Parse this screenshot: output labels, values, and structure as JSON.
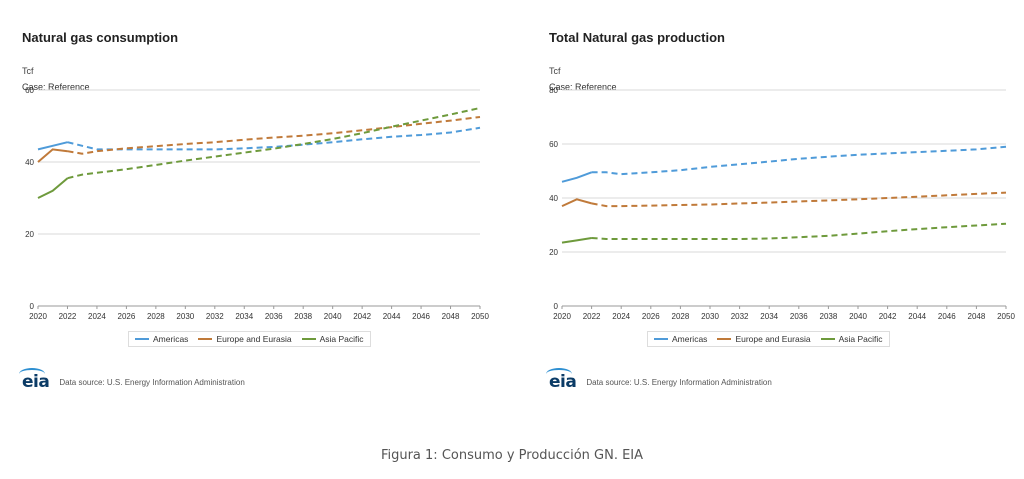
{
  "chart_data": [
    {
      "type": "line",
      "title": "Natural gas consumption",
      "unit_label": "Tcf",
      "case_label": "Case: Reference",
      "x_ticks": [
        "2020",
        "2022",
        "2024",
        "2026",
        "2028",
        "2030",
        "2032",
        "2034",
        "2036",
        "2038",
        "2040",
        "2042",
        "2044",
        "2046",
        "2048",
        "2050"
      ],
      "y_ticks": [
        "0",
        "20",
        "40",
        "60"
      ],
      "ylim": [
        0,
        60
      ],
      "xlim": [
        2020,
        2050
      ],
      "historical_until": 2022,
      "grid": true,
      "legend_position": "bottom",
      "series": [
        {
          "name": "Americas",
          "color": "#4f9bd9",
          "x": [
            2020,
            2021,
            2022,
            2023,
            2024,
            2026,
            2028,
            2030,
            2032,
            2034,
            2036,
            2038,
            2040,
            2042,
            2044,
            2046,
            2048,
            2050
          ],
          "y": [
            43.5,
            44.5,
            45.5,
            44.5,
            43.5,
            43.5,
            43.5,
            43.5,
            43.5,
            43.8,
            44.2,
            44.8,
            45.5,
            46.3,
            47,
            47.5,
            48.2,
            49.5
          ]
        },
        {
          "name": "Europe and Eurasia",
          "color": "#c07a3a",
          "x": [
            2020,
            2021,
            2022,
            2023,
            2024,
            2026,
            2028,
            2030,
            2032,
            2034,
            2036,
            2038,
            2040,
            2042,
            2044,
            2046,
            2048,
            2050
          ],
          "y": [
            40,
            43.5,
            43,
            42.3,
            43,
            43.8,
            44.4,
            45,
            45.5,
            46.2,
            46.8,
            47.3,
            48,
            48.8,
            49.7,
            50.6,
            51.5,
            52.5
          ]
        },
        {
          "name": "Asia Pacific",
          "color": "#6e9a3c",
          "x": [
            2020,
            2021,
            2022,
            2023,
            2024,
            2026,
            2028,
            2030,
            2032,
            2034,
            2036,
            2038,
            2040,
            2042,
            2044,
            2046,
            2048,
            2050
          ],
          "y": [
            30,
            32,
            35.5,
            36.5,
            37,
            38,
            39.2,
            40.4,
            41.5,
            42.6,
            43.7,
            45,
            46.4,
            48,
            49.8,
            51.5,
            53.2,
            55
          ]
        }
      ]
    },
    {
      "type": "line",
      "title": "Total Natural gas production",
      "unit_label": "Tcf",
      "case_label": "Case: Reference",
      "x_ticks": [
        "2020",
        "2022",
        "2024",
        "2026",
        "2028",
        "2030",
        "2032",
        "2034",
        "2036",
        "2038",
        "2040",
        "2042",
        "2044",
        "2046",
        "2048",
        "2050"
      ],
      "y_ticks": [
        "0",
        "20",
        "40",
        "60",
        "80"
      ],
      "ylim": [
        0,
        80
      ],
      "xlim": [
        2020,
        2050
      ],
      "historical_until": 2022,
      "grid": true,
      "legend_position": "bottom",
      "series": [
        {
          "name": "Americas",
          "color": "#4f9bd9",
          "x": [
            2020,
            2021,
            2022,
            2023,
            2024,
            2026,
            2028,
            2030,
            2032,
            2034,
            2036,
            2038,
            2040,
            2042,
            2044,
            2046,
            2048,
            2050
          ],
          "y": [
            46,
            47.5,
            49.5,
            49.5,
            48.8,
            49.5,
            50.3,
            51.5,
            52.5,
            53.5,
            54.5,
            55.3,
            56,
            56.5,
            57,
            57.5,
            58,
            59
          ]
        },
        {
          "name": "Europe and Eurasia",
          "color": "#c07a3a",
          "x": [
            2020,
            2021,
            2022,
            2023,
            2024,
            2026,
            2028,
            2030,
            2032,
            2034,
            2036,
            2038,
            2040,
            2042,
            2044,
            2046,
            2048,
            2050
          ],
          "y": [
            37,
            39.5,
            38,
            37,
            37,
            37.2,
            37.4,
            37.6,
            38,
            38.3,
            38.7,
            39.1,
            39.5,
            40,
            40.5,
            41,
            41.5,
            42
          ]
        },
        {
          "name": "Asia Pacific",
          "color": "#6e9a3c",
          "x": [
            2020,
            2021,
            2022,
            2023,
            2024,
            2026,
            2028,
            2030,
            2032,
            2034,
            2036,
            2038,
            2040,
            2042,
            2044,
            2046,
            2048,
            2050
          ],
          "y": [
            23.5,
            24.3,
            25.2,
            24.8,
            24.8,
            24.8,
            24.8,
            24.8,
            24.8,
            25,
            25.5,
            26,
            26.8,
            27.7,
            28.5,
            29.2,
            29.8,
            30.5
          ]
        }
      ]
    }
  ],
  "source_logo": "eia",
  "source_text": "Data source: U.S. Energy Information Administration",
  "figure_caption": "Figura 1: Consumo y Producción GN. EIA"
}
